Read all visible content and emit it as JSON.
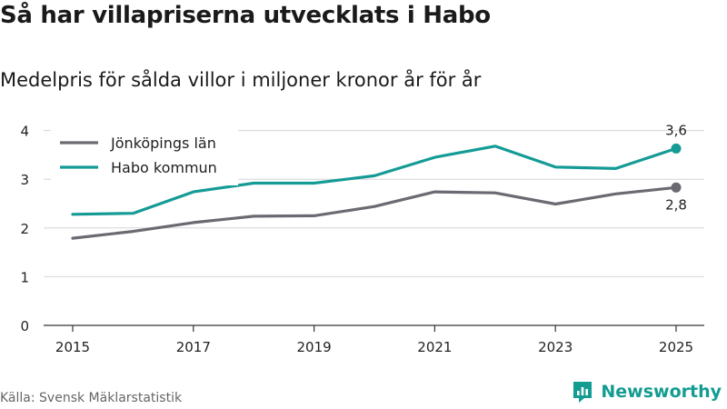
{
  "header": {
    "title": "Så har villapriserna utvecklats i Habo",
    "subtitle": "Medelpris för sålda villor i miljoner kronor år för år"
  },
  "footer": {
    "source": "Källa: Svensk Mäklarstatistik",
    "brand": "Newsworthy"
  },
  "colors": {
    "lan": "#6b6a72",
    "kommun": "#159b96",
    "grid": "#d6d6d6",
    "axis": "#333333",
    "brand": "#139c92"
  },
  "chart_data": {
    "type": "line",
    "title": "Så har villapriserna utvecklats i Habo",
    "subtitle": "Medelpris för sålda villor i miljoner kronor år för år",
    "xlabel": "",
    "ylabel": "",
    "x": [
      2015,
      2016,
      2017,
      2018,
      2019,
      2020,
      2021,
      2022,
      2023,
      2024,
      2025
    ],
    "xticks": [
      "2015",
      "2017",
      "2019",
      "2021",
      "2023",
      "2025"
    ],
    "yticks": [
      "0",
      "1",
      "2",
      "3",
      "4"
    ],
    "ylim": [
      0,
      4.2
    ],
    "grid": true,
    "legend": "top-left",
    "series": [
      {
        "name": "Jönköpings län",
        "values": [
          1.79,
          1.93,
          2.11,
          2.24,
          2.25,
          2.44,
          2.74,
          2.72,
          2.49,
          2.7,
          2.83
        ],
        "end_label": "2,8"
      },
      {
        "name": "Habo kommun",
        "values": [
          2.28,
          2.3,
          2.74,
          2.92,
          2.92,
          3.07,
          3.45,
          3.68,
          3.25,
          3.22,
          3.63
        ],
        "end_label": "3,6"
      }
    ]
  }
}
